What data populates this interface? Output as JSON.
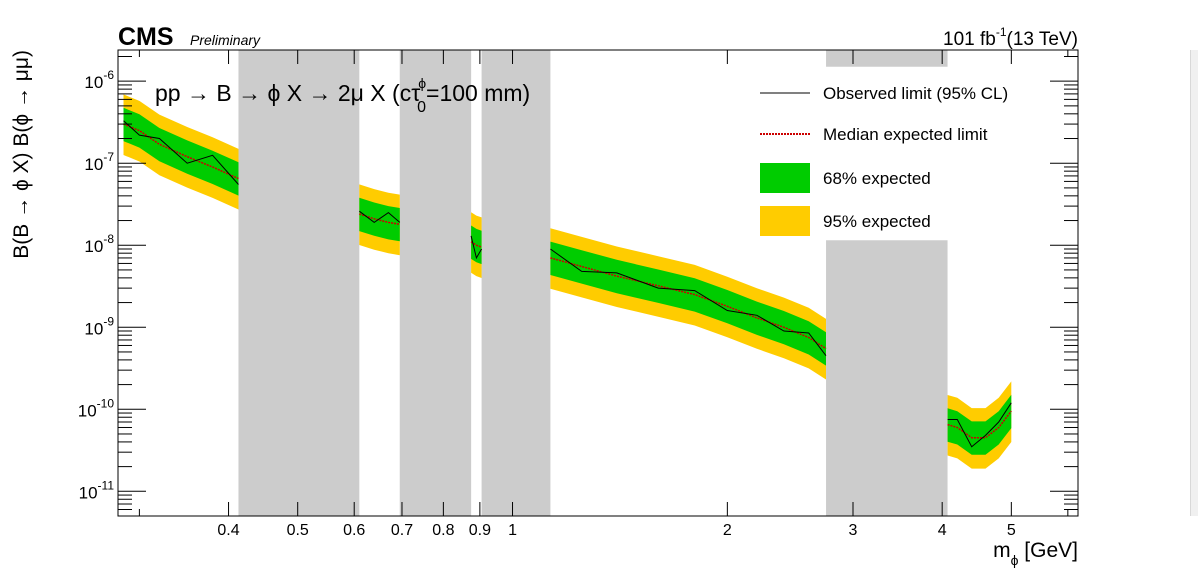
{
  "chart_data": {
    "type": "line",
    "header": {
      "experiment": "CMS",
      "status": "Preliminary",
      "lumi_value": "101 fb",
      "lumi_exp": "-1",
      "energy": "(13 TeV)"
    },
    "process": {
      "main": "pp → B → ϕ X → 2μ X (cτ",
      "sup": "ϕ",
      "sub": "0",
      "tail": "=100 mm)"
    },
    "xlabel": {
      "main": "m",
      "sub": "ϕ",
      "tail": " [GeV]"
    },
    "ylabel": "B(B → ϕ X) B(ϕ → μμ)",
    "xscale": "log",
    "yscale": "log",
    "xlim": [
      0.28,
      6.2
    ],
    "ylim": [
      5e-12,
      2.4e-06
    ],
    "x_ticks": [
      {
        "v": 0.4,
        "label": "0.4"
      },
      {
        "v": 0.5,
        "label": "0.5"
      },
      {
        "v": 0.6,
        "label": "0.6"
      },
      {
        "v": 0.7,
        "label": "0.7"
      },
      {
        "v": 0.8,
        "label": "0.8"
      },
      {
        "v": 0.9,
        "label": "0.9"
      },
      {
        "v": 1,
        "label": "1"
      },
      {
        "v": 2,
        "label": "2"
      },
      {
        "v": 3,
        "label": "3"
      },
      {
        "v": 4,
        "label": "4"
      },
      {
        "v": 5,
        "label": "5"
      }
    ],
    "y_ticks": [
      {
        "v": 1e-11,
        "base": "10",
        "exp": "-11"
      },
      {
        "v": 1e-10,
        "base": "10",
        "exp": "-10"
      },
      {
        "v": 1e-09,
        "base": "10",
        "exp": "-9"
      },
      {
        "v": 1e-08,
        "base": "10",
        "exp": "-8"
      },
      {
        "v": 1e-07,
        "base": "10",
        "exp": "-7"
      },
      {
        "v": 1e-06,
        "base": "10",
        "exp": "-6"
      }
    ],
    "excluded_regions": [
      {
        "xmin": 0.413,
        "xmax": 0.61,
        "ymax": "top"
      },
      {
        "xmin": 0.695,
        "xmax": 0.875,
        "ymax": "top"
      },
      {
        "xmin": 0.905,
        "xmax": 1.13,
        "ymax": "top"
      },
      {
        "xmin": 2.75,
        "xmax": 4.07,
        "ymax": 1.15e-08
      },
      {
        "xmin": 2.75,
        "xmax": 4.07,
        "ymax": "top",
        "ymin": 1.5e-06
      }
    ],
    "segments": [
      {
        "x": [
          0.285,
          0.3,
          0.32,
          0.35,
          0.38,
          0.413
        ],
        "expected": [
          3e-07,
          2.5e-07,
          1.7e-07,
          1.2e-07,
          9e-08,
          6.5e-08
        ],
        "observed": [
          3.3e-07,
          2.2e-07,
          2e-07,
          1e-07,
          1.25e-07,
          5.5e-08
        ]
      },
      {
        "x": [
          0.61,
          0.64,
          0.67,
          0.695
        ],
        "expected": [
          2.4e-08,
          2.1e-08,
          1.9e-08,
          1.8e-08
        ],
        "observed": [
          2.6e-08,
          1.9e-08,
          2.5e-08,
          1.9e-08
        ]
      },
      {
        "x": [
          0.875,
          0.89,
          0.905
        ],
        "expected": [
          1.1e-08,
          1e-08,
          9.5e-09
        ],
        "observed": [
          1.3e-08,
          7e-09,
          9e-09
        ]
      },
      {
        "x": [
          1.13,
          1.25,
          1.4,
          1.6,
          1.8,
          2.0,
          2.2,
          2.4,
          2.6,
          2.75
        ],
        "expected": [
          7e-09,
          5.5e-09,
          4.2e-09,
          3.2e-09,
          2.5e-09,
          1.8e-09,
          1.3e-09,
          1e-09,
          7.5e-10,
          5.5e-10
        ],
        "observed": [
          9e-09,
          4.8e-09,
          4.6e-09,
          3e-09,
          2.8e-09,
          1.6e-09,
          1.4e-09,
          9e-10,
          8.5e-10,
          4.5e-10
        ]
      },
      {
        "x": [
          4.07,
          4.2,
          4.4,
          4.6,
          4.8,
          5.0
        ],
        "expected": [
          6.5e-11,
          6e-11,
          4.5e-11,
          4.5e-11,
          6e-11,
          9.5e-11
        ],
        "observed": [
          7.5e-11,
          7.5e-11,
          3.5e-11,
          4.8e-11,
          7e-11,
          1.2e-10
        ]
      }
    ],
    "band_factors": {
      "one_sigma": [
        0.62,
        1.58
      ],
      "two_sigma": [
        0.42,
        2.3
      ]
    },
    "legend": {
      "observed": "Observed limit (95% CL)",
      "expected": "Median expected limit",
      "one_sigma": "68% expected",
      "two_sigma": "95% expected"
    },
    "colors": {
      "band68": "#00cc00",
      "band95": "#ffcc00",
      "excluded": "#cccccc",
      "observed": "#000000",
      "expected": "#cc0000"
    }
  }
}
